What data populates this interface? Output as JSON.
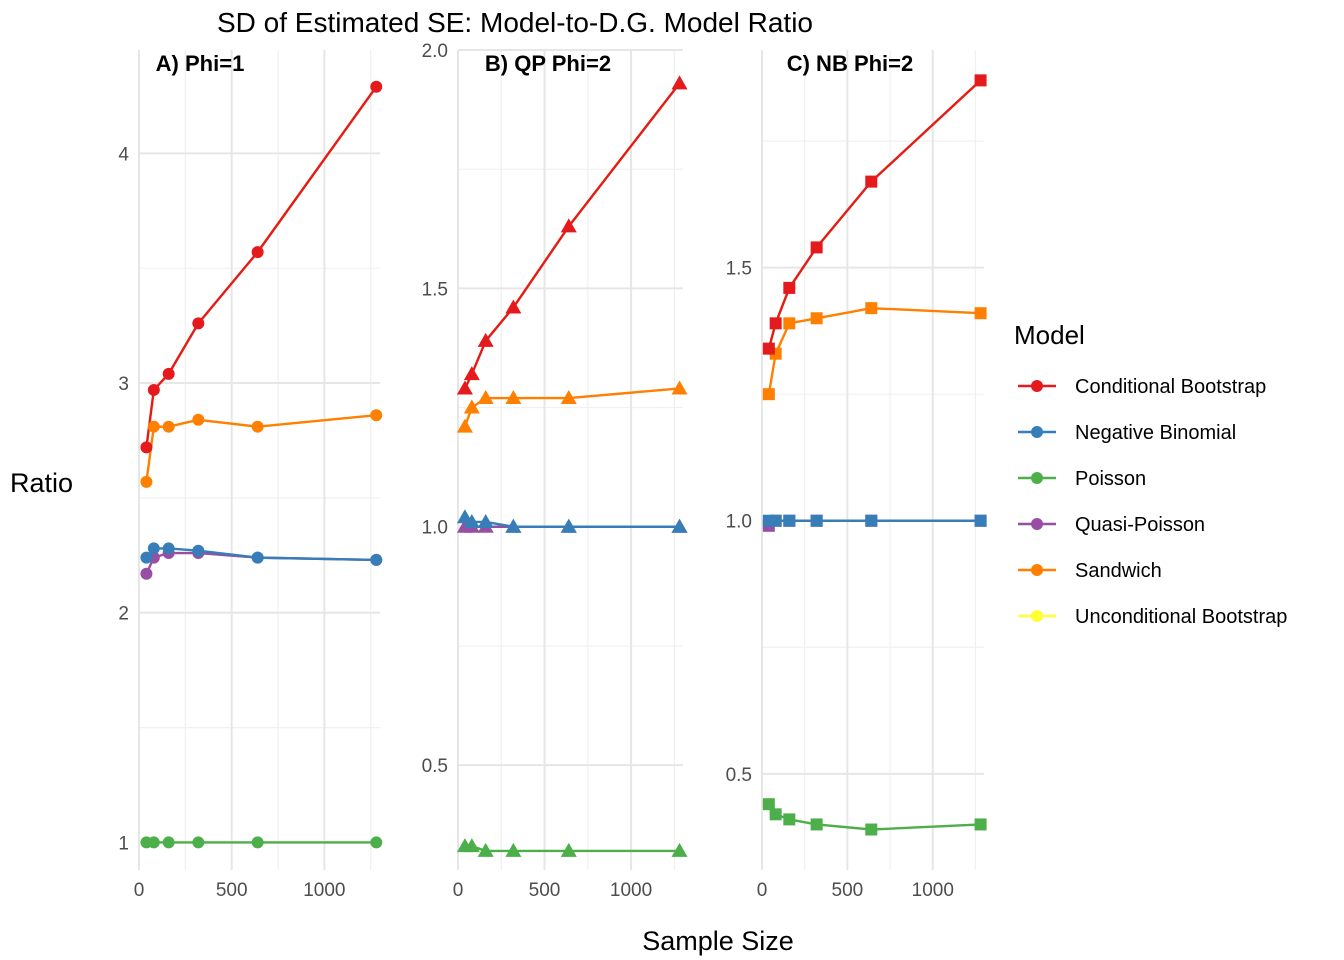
{
  "chart_data": {
    "type": "line",
    "title": "SD of Estimated SE: Model-to-D.G. Model Ratio",
    "xlabel": "Sample Size",
    "ylabel": "Ratio",
    "legend": {
      "title": "Model",
      "placement": "right",
      "entries": [
        {
          "name": "Conditional Bootstrap",
          "color": "#e41a1c"
        },
        {
          "name": "Negative Binomial",
          "color": "#377eb8"
        },
        {
          "name": "Poisson",
          "color": "#4daf4a"
        },
        {
          "name": "Quasi-Poisson",
          "color": "#984ea3"
        },
        {
          "name": "Sandwich",
          "color": "#ff7f00"
        },
        {
          "name": "Unconditional Bootstrap",
          "color": "#ffff33"
        }
      ]
    },
    "grid": true,
    "x": [
      40,
      80,
      160,
      320,
      640,
      1280
    ],
    "panels": [
      {
        "title": "A) Phi=1",
        "marker": "circle",
        "xlim": [
          0,
          1300
        ],
        "ylim": [
          0.88,
          4.45
        ],
        "xticks": [
          0,
          500,
          1000
        ],
        "xtick_labels": [
          "0",
          "500",
          "1000"
        ],
        "yticks": [
          1,
          2,
          3,
          4
        ],
        "ytick_labels": [
          "1",
          "2",
          "3",
          "4"
        ],
        "series": [
          {
            "name": "Unconditional Bootstrap",
            "values": [
              2.72,
              2.97,
              3.04,
              3.26,
              3.57,
              4.29
            ]
          },
          {
            "name": "Sandwich",
            "values": [
              2.57,
              2.81,
              2.81,
              2.84,
              2.81,
              2.86
            ]
          },
          {
            "name": "Quasi-Poisson",
            "values": [
              2.17,
              2.24,
              2.26,
              2.26,
              2.24,
              2.23
            ]
          },
          {
            "name": "Negative Binomial",
            "values": [
              2.24,
              2.28,
              2.28,
              2.27,
              2.24,
              2.23
            ]
          },
          {
            "name": "Poisson",
            "values": [
              1.0,
              1.0,
              1.0,
              1.0,
              1.0,
              1.0
            ]
          },
          {
            "name": "Conditional Bootstrap",
            "values": [
              2.72,
              2.97,
              3.04,
              3.26,
              3.57,
              4.29
            ]
          }
        ]
      },
      {
        "title": "B) QP Phi=2",
        "marker": "triangle",
        "xlim": [
          0,
          1300
        ],
        "ylim": [
          0.28,
          2.0
        ],
        "xticks": [
          0,
          500,
          1000
        ],
        "xtick_labels": [
          "0",
          "500",
          "1000"
        ],
        "yticks": [
          0.5,
          1.0,
          1.5,
          2.0
        ],
        "ytick_labels": [
          "0.5",
          "1.0",
          "1.5",
          "2.0"
        ],
        "series": [
          {
            "name": "Unconditional Bootstrap",
            "values": [
              1.29,
              1.32,
              1.39,
              1.46,
              1.63,
              1.93
            ]
          },
          {
            "name": "Sandwich",
            "values": [
              1.21,
              1.25,
              1.27,
              1.27,
              1.27,
              1.29
            ]
          },
          {
            "name": "Quasi-Poisson",
            "values": [
              1.0,
              1.0,
              1.0,
              1.0,
              1.0,
              1.0
            ]
          },
          {
            "name": "Negative Binomial",
            "values": [
              1.02,
              1.01,
              1.01,
              1.0,
              1.0,
              1.0
            ]
          },
          {
            "name": "Poisson",
            "values": [
              0.33,
              0.33,
              0.32,
              0.32,
              0.32,
              0.32
            ]
          },
          {
            "name": "Conditional Bootstrap",
            "values": [
              1.29,
              1.32,
              1.39,
              1.46,
              1.63,
              1.93
            ]
          }
        ]
      },
      {
        "title": "C) NB Phi=2",
        "marker": "square",
        "xlim": [
          0,
          1300
        ],
        "ylim": [
          0.31,
          1.93
        ],
        "xticks": [
          0,
          500,
          1000
        ],
        "xtick_labels": [
          "0",
          "500",
          "1000"
        ],
        "yticks": [
          0.5,
          1.0,
          1.5
        ],
        "ytick_labels": [
          "0.5",
          "1.0",
          "1.5"
        ],
        "series": [
          {
            "name": "Unconditional Bootstrap",
            "values": [
              1.34,
              1.39,
              1.46,
              1.54,
              1.67,
              1.87
            ]
          },
          {
            "name": "Sandwich",
            "values": [
              1.25,
              1.33,
              1.39,
              1.4,
              1.42,
              1.41
            ]
          },
          {
            "name": "Quasi-Poisson",
            "values": [
              0.99,
              1.0,
              1.0,
              1.0,
              1.0,
              1.0
            ]
          },
          {
            "name": "Negative Binomial",
            "values": [
              1.0,
              1.0,
              1.0,
              1.0,
              1.0,
              1.0
            ]
          },
          {
            "name": "Poisson",
            "values": [
              0.44,
              0.42,
              0.41,
              0.4,
              0.39,
              0.4
            ]
          },
          {
            "name": "Conditional Bootstrap",
            "values": [
              1.34,
              1.39,
              1.46,
              1.54,
              1.67,
              1.87
            ]
          }
        ]
      }
    ]
  }
}
